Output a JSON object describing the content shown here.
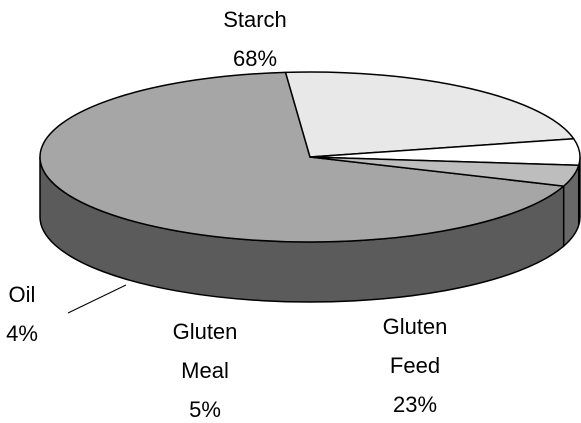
{
  "chart_data": {
    "type": "pie",
    "style": "3d",
    "categories": [
      "Starch",
      "Gluten Feed",
      "Gluten Meal",
      "Oil"
    ],
    "values": [
      68,
      23,
      5,
      4
    ],
    "value_labels": [
      "68%",
      "23%",
      "5%",
      "4%"
    ],
    "colors": [
      "#a6a6a6",
      "#e8e8e8",
      "#ffffff",
      "#bdbdbd"
    ]
  }
}
